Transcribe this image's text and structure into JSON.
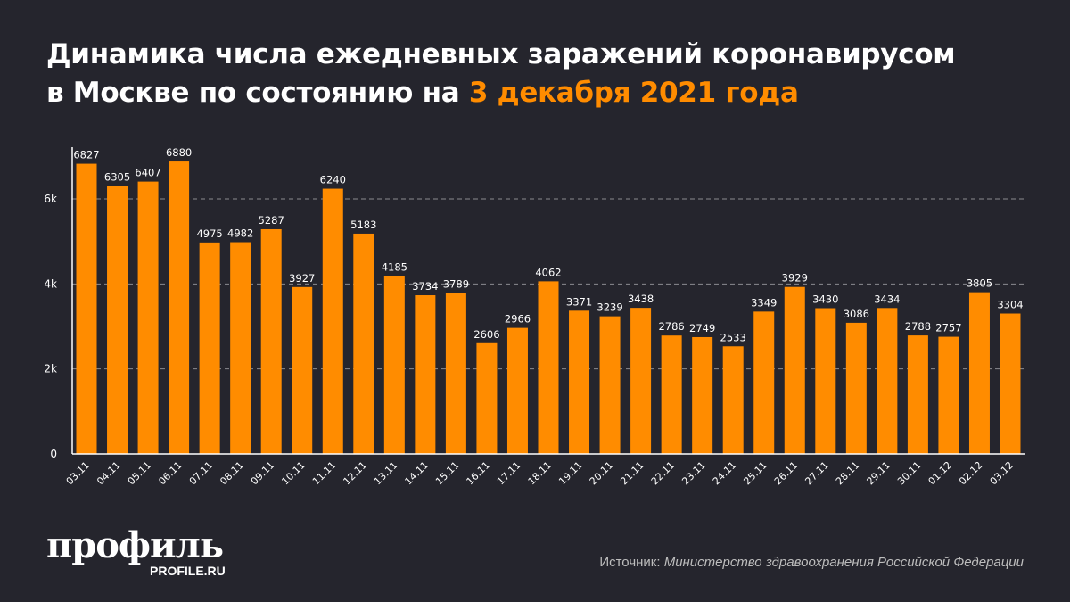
{
  "title": {
    "line1": "Динамика числа ежедневных заражений коронавирусом",
    "line2_prefix": "в Москве по состоянию на ",
    "line2_highlight": "3 декабря 2021 года"
  },
  "colors": {
    "bar": "#ff8c00",
    "background": "#25252d",
    "highlight": "#ff8c00"
  },
  "chart_data": {
    "type": "bar",
    "title": "Динамика числа ежедневных заражений коронавирусом в Москве по состоянию на 3 декабря 2021 года",
    "categories": [
      "03.11",
      "04.11",
      "05.11",
      "06.11",
      "07.11",
      "08.11",
      "09.11",
      "10.11",
      "11.11",
      "12.11",
      "13.11",
      "14.11",
      "15.11",
      "16.11",
      "17.11",
      "18.11",
      "19.11",
      "20.11",
      "21.11",
      "22.11",
      "23.11",
      "24.11",
      "25.11",
      "26.11",
      "27.11",
      "28.11",
      "29.11",
      "30.11",
      "01.12",
      "02.12",
      "03.12"
    ],
    "values": [
      6827,
      6305,
      6407,
      6880,
      4975,
      4982,
      5287,
      3927,
      6240,
      5183,
      4185,
      3734,
      3789,
      2606,
      2966,
      4062,
      3371,
      3239,
      3438,
      2786,
      2749,
      2533,
      3349,
      3929,
      3430,
      3086,
      3434,
      2788,
      2757,
      3805,
      3304
    ],
    "yticks": [
      {
        "value": 0,
        "label": "0"
      },
      {
        "value": 2000,
        "label": "2k"
      },
      {
        "value": 4000,
        "label": "4k"
      },
      {
        "value": 6000,
        "label": "6k"
      }
    ],
    "ylim": [
      0,
      7200
    ],
    "grid": "dashed horizontal",
    "data_labels": true
  },
  "logo": {
    "name": "профиль",
    "site": "PROFILE.RU"
  },
  "source": {
    "label": "Источник: ",
    "text": "Министерство здравоохранения Российской Федерации"
  }
}
